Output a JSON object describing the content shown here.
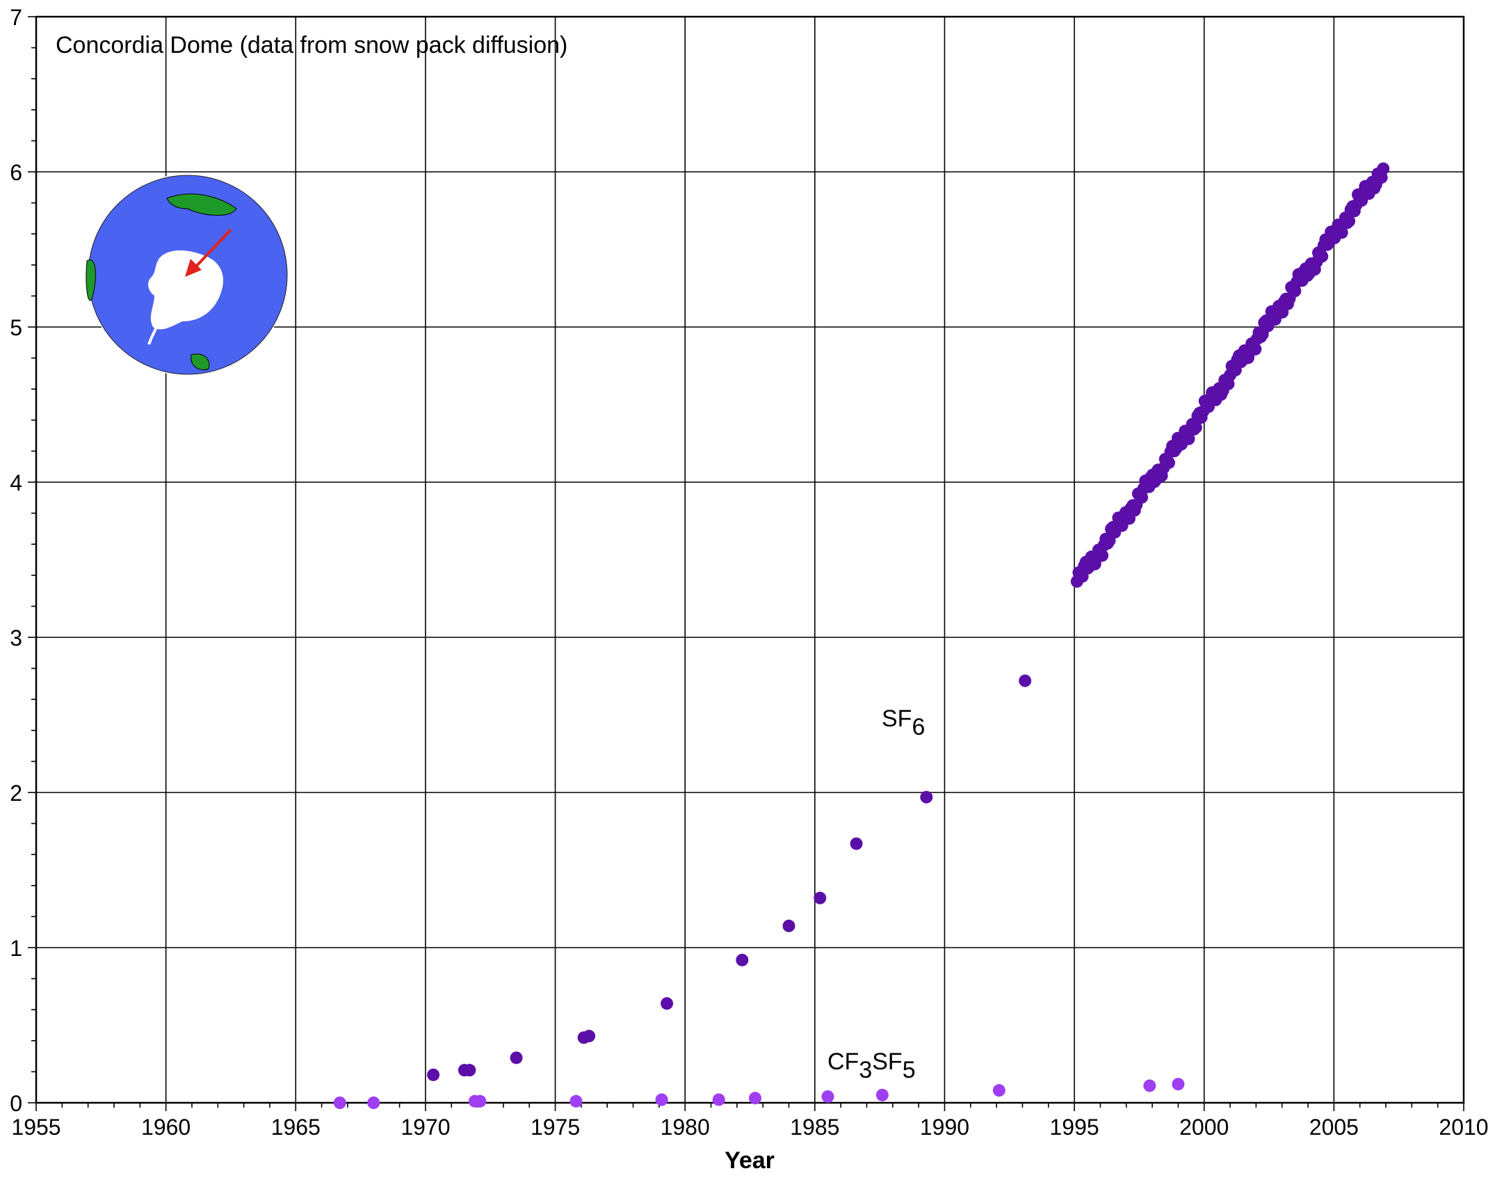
{
  "chart_data": {
    "type": "scatter",
    "title": "Concordia Dome (data from snow pack diffusion)",
    "xlabel": "Year",
    "ylabel": "",
    "xlim": [
      1955,
      2010
    ],
    "ylim": [
      0,
      7
    ],
    "xticks": [
      1955,
      1960,
      1965,
      1970,
      1975,
      1980,
      1985,
      1990,
      1995,
      2000,
      2005,
      2010
    ],
    "yticks": [
      0,
      1,
      2,
      3,
      4,
      5,
      6,
      7
    ],
    "grid": true,
    "series": [
      {
        "name": "SF6",
        "label_main": "SF",
        "label_sub": "6",
        "color": "#5b0ea8",
        "points": [
          [
            1970.3,
            0.18
          ],
          [
            1971.5,
            0.21
          ],
          [
            1971.7,
            0.21
          ],
          [
            1973.5,
            0.29
          ],
          [
            1976.1,
            0.42
          ],
          [
            1976.3,
            0.43
          ],
          [
            1979.3,
            0.64
          ],
          [
            1982.2,
            0.92
          ],
          [
            1984.0,
            1.14
          ],
          [
            1985.2,
            1.32
          ],
          [
            1986.6,
            1.67
          ],
          [
            1989.3,
            1.97
          ],
          [
            1993.1,
            2.72
          ]
        ],
        "continuous": {
          "x_start": 1995.1,
          "y_start": 3.36,
          "x_end": 2006.9,
          "y_end": 6.02
        }
      },
      {
        "name": "CF3SF5",
        "label_parts": [
          "CF",
          "3",
          "SF",
          "5"
        ],
        "color": "#a03ef2",
        "points": [
          [
            1966.7,
            0.0
          ],
          [
            1968.0,
            0.0
          ],
          [
            1971.9,
            0.01
          ],
          [
            1972.1,
            0.01
          ],
          [
            1975.8,
            0.01
          ],
          [
            1979.1,
            0.02
          ],
          [
            1981.3,
            0.02
          ],
          [
            1982.7,
            0.03
          ],
          [
            1985.5,
            0.04
          ],
          [
            1987.6,
            0.05
          ],
          [
            1992.1,
            0.08
          ],
          [
            1997.9,
            0.11
          ],
          [
            1999.0,
            0.12
          ]
        ]
      }
    ],
    "inset": {
      "kind": "globe",
      "description_icon": "antarctica-globe-icon",
      "ocean_color": "#4a63f0",
      "land_color": "#1f9a2a",
      "ice_color": "#ffffff",
      "arrow_color": "#e0231c"
    }
  }
}
